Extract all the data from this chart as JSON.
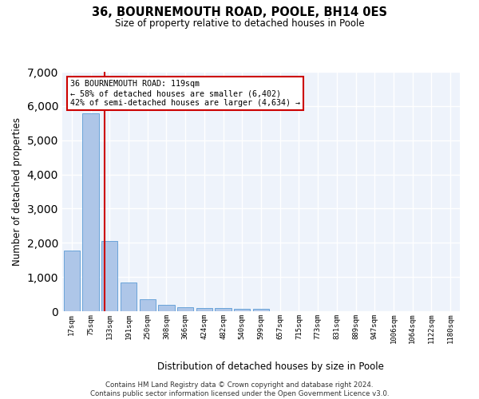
{
  "title": "36, BOURNEMOUTH ROAD, POOLE, BH14 0ES",
  "subtitle": "Size of property relative to detached houses in Poole",
  "xlabel": "Distribution of detached houses by size in Poole",
  "ylabel": "Number of detached properties",
  "categories": [
    "17sqm",
    "75sqm",
    "133sqm",
    "191sqm",
    "250sqm",
    "308sqm",
    "366sqm",
    "424sqm",
    "482sqm",
    "540sqm",
    "599sqm",
    "657sqm",
    "715sqm",
    "773sqm",
    "831sqm",
    "889sqm",
    "947sqm",
    "1006sqm",
    "1064sqm",
    "1122sqm",
    "1180sqm"
  ],
  "values": [
    1780,
    5780,
    2060,
    830,
    340,
    185,
    115,
    100,
    90,
    80,
    75,
    0,
    0,
    0,
    0,
    0,
    0,
    0,
    0,
    0,
    0
  ],
  "bar_color": "#aec6e8",
  "bar_edge_color": "#5b9bd5",
  "vline_x": 1.72,
  "vline_color": "#cc0000",
  "annotation_text": "36 BOURNEMOUTH ROAD: 119sqm\n← 58% of detached houses are smaller (6,402)\n42% of semi-detached houses are larger (4,634) →",
  "annotation_box_color": "#cc0000",
  "ylim": [
    0,
    7000
  ],
  "yticks": [
    0,
    1000,
    2000,
    3000,
    4000,
    5000,
    6000,
    7000
  ],
  "background_color": "#eef3fb",
  "grid_color": "#ffffff",
  "footer": "Contains HM Land Registry data © Crown copyright and database right 2024.\nContains public sector information licensed under the Open Government Licence v3.0."
}
